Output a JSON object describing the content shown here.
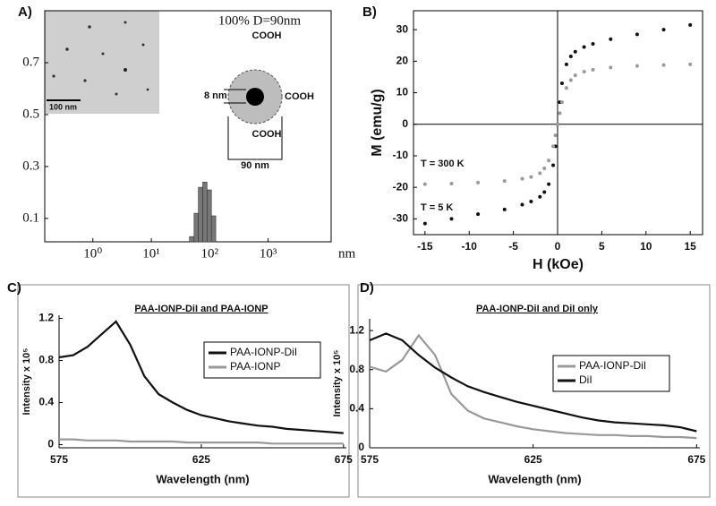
{
  "chart_data": [
    {
      "type": "histogram",
      "panel_label": "A)",
      "bins": [
        45,
        54,
        64,
        76,
        90,
        107,
        127
      ],
      "values": [
        0.03,
        0.12,
        0.22,
        0.24,
        0.21,
        0.11
      ],
      "color": "#777777",
      "x_label": "nm",
      "log_x": true,
      "xlim": [
        0.15,
        12000
      ],
      "xticks": [
        {
          "value": 1,
          "label": "10⁰"
        },
        {
          "value": 10,
          "label": "10¹"
        },
        {
          "value": 100,
          "label": "10²"
        },
        {
          "value": 1000,
          "label": "10³"
        }
      ],
      "ylim": [
        0.01,
        0.9
      ],
      "yticks": [
        0.1,
        0.3,
        0.5,
        0.7
      ],
      "annotations": [
        "100% D=90nm",
        "COOH",
        "COOH",
        "COOH",
        "8 nm",
        "90 nm",
        "100 nm"
      ]
    },
    {
      "type": "scatter",
      "panel_label": "B)",
      "x": [
        -15,
        -12,
        -9,
        -6,
        -4,
        -3,
        -2,
        -1.5,
        -1,
        -0.5,
        -0.25,
        0,
        0.25,
        0.5,
        1,
        1.5,
        2,
        3,
        4,
        6,
        9,
        12,
        15
      ],
      "series": [
        {
          "name": "T = 5 K",
          "color": "#111111",
          "values": [
            -31.5,
            -30,
            -28.5,
            -27,
            -25.5,
            -24.5,
            -23,
            -21.5,
            -19,
            -13,
            -7,
            0,
            7,
            13,
            19,
            21.5,
            23,
            24.5,
            25.5,
            27,
            28.5,
            30,
            31.5
          ]
        },
        {
          "name": "T = 300 K",
          "color": "#999999",
          "values": [
            -19,
            -18.8,
            -18.5,
            -18,
            -17.3,
            -16.7,
            -15.5,
            -14,
            -11.5,
            -7,
            -3.5,
            0,
            3.5,
            7,
            11.5,
            14,
            15.5,
            16.7,
            17.3,
            18,
            18.5,
            18.8,
            19
          ]
        }
      ],
      "x_label": "H (kOe)",
      "y_label": "M (emu/g)",
      "xlim": [
        -16.3,
        16.4
      ],
      "xticks": [
        -15,
        -10,
        -5,
        0,
        5,
        10,
        15
      ],
      "ylim": [
        -35,
        36
      ],
      "yticks": [
        -30,
        -20,
        -10,
        0,
        10,
        20,
        30
      ]
    },
    {
      "type": "line",
      "panel_label": "C)",
      "title": "PAA-IONP-DiI and PAA-IONP",
      "x": [
        575,
        580,
        585,
        590,
        595,
        600,
        605,
        610,
        615,
        620,
        625,
        630,
        635,
        640,
        645,
        650,
        655,
        660,
        665,
        670,
        675
      ],
      "series": [
        {
          "name": "PAA-IONP-DiI",
          "color": "#111111",
          "values": [
            0.83,
            0.85,
            0.93,
            1.05,
            1.17,
            0.95,
            0.65,
            0.48,
            0.4,
            0.33,
            0.28,
            0.25,
            0.22,
            0.2,
            0.18,
            0.17,
            0.15,
            0.14,
            0.13,
            0.12,
            0.11
          ]
        },
        {
          "name": "PAA-IONP",
          "color": "#999999",
          "values": [
            0.05,
            0.05,
            0.04,
            0.04,
            0.04,
            0.03,
            0.03,
            0.03,
            0.03,
            0.02,
            0.02,
            0.02,
            0.02,
            0.02,
            0.02,
            0.01,
            0.01,
            0.01,
            0.01,
            0.01,
            0.01
          ]
        }
      ],
      "x_label": "Wavelength (nm)",
      "y_label": "Intensity x 10⁵",
      "xlim": [
        575,
        676
      ],
      "xticks": [
        575,
        625,
        675
      ],
      "ylim": [
        -0.03,
        1.23
      ],
      "yticks": [
        0,
        0.4,
        0.8,
        1.2
      ],
      "legend": "upper right"
    },
    {
      "type": "line",
      "panel_label": "D)",
      "title": "PAA-IONP-DiI and DiI only",
      "x": [
        575,
        580,
        585,
        590,
        595,
        600,
        605,
        610,
        615,
        620,
        625,
        630,
        635,
        640,
        645,
        650,
        655,
        660,
        665,
        670,
        675
      ],
      "series": [
        {
          "name": "PAA-IONP-DiI",
          "color": "#999999",
          "values": [
            0.83,
            0.78,
            0.9,
            1.15,
            0.95,
            0.55,
            0.38,
            0.3,
            0.26,
            0.22,
            0.19,
            0.17,
            0.15,
            0.14,
            0.13,
            0.13,
            0.12,
            0.12,
            0.11,
            0.11,
            0.1
          ]
        },
        {
          "name": "DiI",
          "color": "#111111",
          "values": [
            1.1,
            1.17,
            1.1,
            0.95,
            0.82,
            0.72,
            0.63,
            0.57,
            0.52,
            0.47,
            0.43,
            0.39,
            0.35,
            0.31,
            0.28,
            0.26,
            0.25,
            0.24,
            0.23,
            0.21,
            0.17
          ]
        }
      ],
      "x_label": "Wavelength (nm)",
      "y_label": "Intensity x 10⁵",
      "xlim": [
        575,
        676
      ],
      "xticks": [
        575,
        625,
        675
      ],
      "ylim": [
        0,
        1.32
      ],
      "yticks": [
        0,
        0.4,
        0.8,
        1.2
      ],
      "legend": "upper right"
    }
  ]
}
